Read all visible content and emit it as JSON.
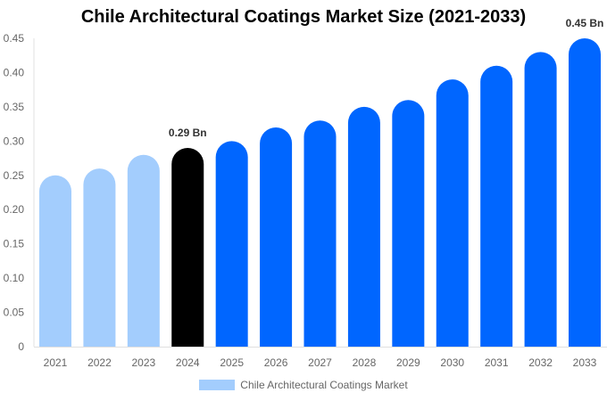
{
  "chart_data": {
    "type": "bar",
    "title": "Chile Architectural Coatings Market Size (2021-2033)",
    "categories": [
      "2021",
      "2022",
      "2023",
      "2024",
      "2025",
      "2026",
      "2027",
      "2028",
      "2029",
      "2030",
      "2031",
      "2032",
      "2033"
    ],
    "series": [
      {
        "name": "Chile Architectural Coatings Market",
        "values": [
          0.25,
          0.26,
          0.28,
          0.29,
          0.3,
          0.32,
          0.33,
          0.35,
          0.36,
          0.39,
          0.41,
          0.43,
          0.45
        ]
      }
    ],
    "yticks": [
      "0",
      "0.05",
      "0.10",
      "0.15",
      "0.20",
      "0.25",
      "0.30",
      "0.35",
      "0.40",
      "0.45"
    ],
    "ylim": [
      0,
      0.45
    ],
    "grid": false,
    "legend_position": "bottom",
    "data_labels": [
      {
        "category": "2024",
        "text": "0.29 Bn"
      },
      {
        "category": "2033",
        "text": "0.45 Bn"
      }
    ],
    "colors": {
      "historical": "#a3cdfd",
      "current": "#000000",
      "forecast": "#0066ff"
    }
  }
}
